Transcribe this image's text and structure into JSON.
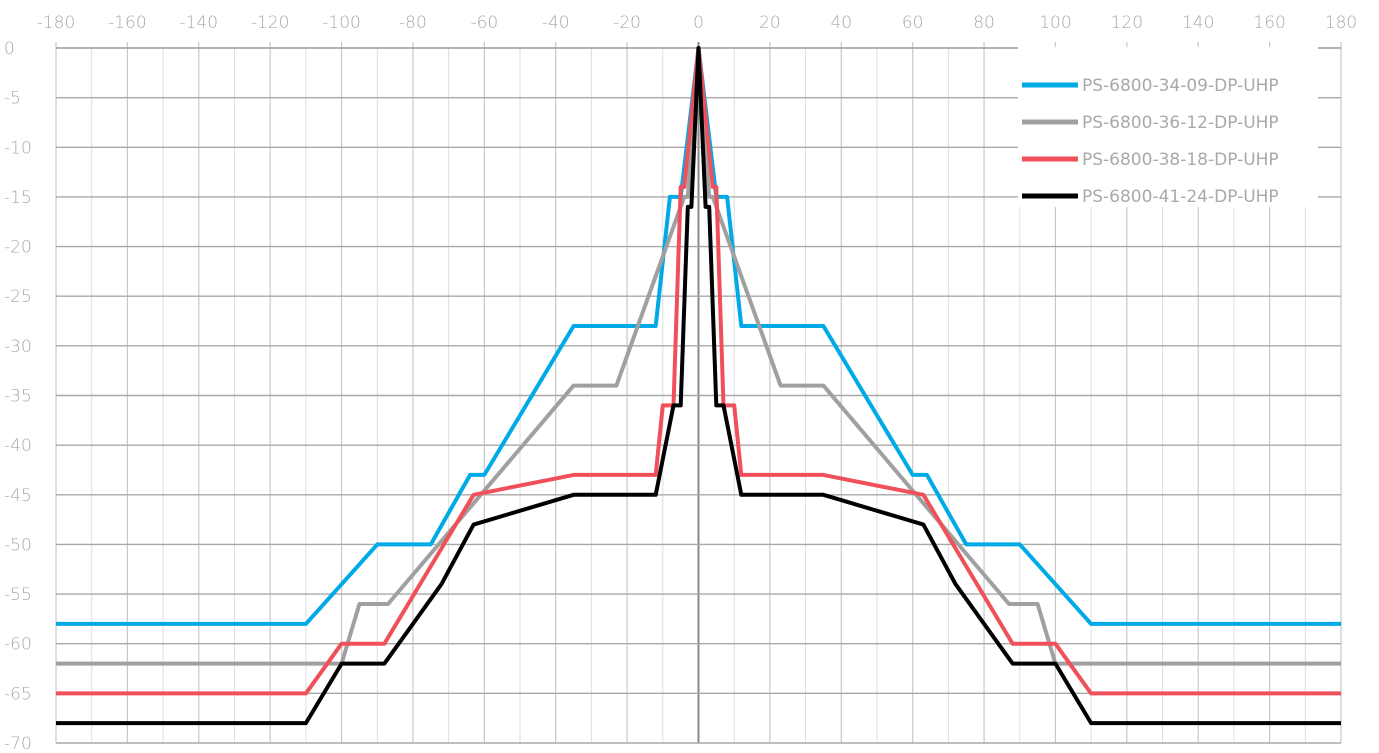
{
  "chart_data": {
    "type": "line",
    "title": "",
    "xlabel": "",
    "ylabel": "",
    "xlim": [
      -180,
      180
    ],
    "ylim": [
      -70,
      0
    ],
    "x_ticks": [
      -180,
      -160,
      -140,
      -120,
      -100,
      -80,
      -60,
      -40,
      -20,
      0,
      20,
      40,
      60,
      80,
      100,
      120,
      140,
      160,
      180
    ],
    "y_ticks": [
      0,
      -5,
      -10,
      -15,
      -20,
      -25,
      -30,
      -35,
      -40,
      -45,
      -50,
      -55,
      -60,
      -65,
      -70
    ],
    "x_minor_step": 10,
    "grid": true,
    "legend_position": "top-right",
    "series": [
      {
        "name": "PS-6800-34-09-DP-UHP",
        "color": "#00aae6",
        "points": [
          [
            -180,
            -58
          ],
          [
            -110,
            -58
          ],
          [
            -90,
            -50
          ],
          [
            -75,
            -50
          ],
          [
            -64,
            -43
          ],
          [
            -60,
            -43
          ],
          [
            -35,
            -28
          ],
          [
            -12,
            -28
          ],
          [
            -8,
            -15
          ],
          [
            -5,
            -15
          ],
          [
            0,
            0
          ],
          [
            5,
            -15
          ],
          [
            8,
            -15
          ],
          [
            12,
            -28
          ],
          [
            35,
            -28
          ],
          [
            60,
            -43
          ],
          [
            64,
            -43
          ],
          [
            75,
            -50
          ],
          [
            90,
            -50
          ],
          [
            110,
            -58
          ],
          [
            180,
            -58
          ]
        ]
      },
      {
        "name": "PS-6800-36-12-DP-UHP",
        "color": "#a0a0a0",
        "points": [
          [
            -180,
            -62
          ],
          [
            -100,
            -62
          ],
          [
            -95,
            -56
          ],
          [
            -87,
            -56
          ],
          [
            -35,
            -34
          ],
          [
            -23,
            -34
          ],
          [
            -4,
            -15
          ],
          [
            -3,
            -15
          ],
          [
            0,
            0
          ],
          [
            3,
            -15
          ],
          [
            4,
            -15
          ],
          [
            23,
            -34
          ],
          [
            35,
            -34
          ],
          [
            87,
            -56
          ],
          [
            95,
            -56
          ],
          [
            100,
            -62
          ],
          [
            180,
            -62
          ]
        ]
      },
      {
        "name": "PS-6800-38-18-DP-UHP",
        "color": "#f0505a",
        "points": [
          [
            -180,
            -65
          ],
          [
            -110,
            -65
          ],
          [
            -100,
            -60
          ],
          [
            -88,
            -60
          ],
          [
            -63,
            -45
          ],
          [
            -35,
            -43
          ],
          [
            -12,
            -43
          ],
          [
            -10,
            -36
          ],
          [
            -7,
            -36
          ],
          [
            -5,
            -14
          ],
          [
            -4,
            -14
          ],
          [
            0,
            0
          ],
          [
            4,
            -14
          ],
          [
            5,
            -14
          ],
          [
            7,
            -36
          ],
          [
            10,
            -36
          ],
          [
            12,
            -43
          ],
          [
            35,
            -43
          ],
          [
            63,
            -45
          ],
          [
            88,
            -60
          ],
          [
            100,
            -60
          ],
          [
            110,
            -65
          ],
          [
            180,
            -65
          ]
        ]
      },
      {
        "name": "PS-6800-41-24-DP-UHP",
        "color": "#000000",
        "points": [
          [
            -180,
            -68
          ],
          [
            -110,
            -68
          ],
          [
            -100,
            -62
          ],
          [
            -88,
            -62
          ],
          [
            -72,
            -54
          ],
          [
            -63,
            -48
          ],
          [
            -35,
            -45
          ],
          [
            -12,
            -45
          ],
          [
            -7,
            -36
          ],
          [
            -5,
            -36
          ],
          [
            -3,
            -16
          ],
          [
            -2,
            -16
          ],
          [
            0,
            0
          ],
          [
            2,
            -16
          ],
          [
            3,
            -16
          ],
          [
            5,
            -36
          ],
          [
            7,
            -36
          ],
          [
            12,
            -45
          ],
          [
            35,
            -45
          ],
          [
            63,
            -48
          ],
          [
            72,
            -54
          ],
          [
            88,
            -62
          ],
          [
            100,
            -62
          ],
          [
            110,
            -68
          ],
          [
            180,
            -68
          ]
        ]
      }
    ]
  }
}
